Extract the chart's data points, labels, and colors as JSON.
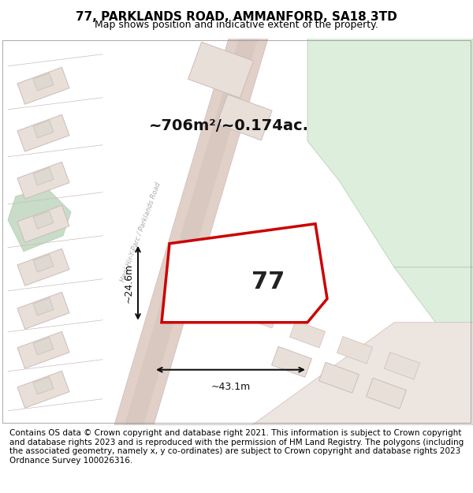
{
  "title": "77, PARKLANDS ROAD, AMMANFORD, SA18 3TD",
  "subtitle": "Map shows position and indicative extent of the property.",
  "footer": "Contains OS data © Crown copyright and database right 2021. This information is subject to Crown copyright and database rights 2023 and is reproduced with the permission of HM Land Registry. The polygons (including the associated geometry, namely x, y co-ordinates) are subject to Crown copyright and database rights 2023 Ordnance Survey 100026316.",
  "area_label": "~706m²/~0.174ac.",
  "number_label": "77",
  "dim_width": "~43.1m",
  "dim_height": "~24.6m",
  "road_label": "Heol Hir-Y-Parc / Parklands Road",
  "bg_color": "#ffffff",
  "map_bg": "#f8f5f2",
  "green_area": "#ddeedd",
  "road_color": "#e8d8d0",
  "road_center_color": "#d4c0b8",
  "building_fill": "#e8e0d8",
  "plot_fill": "#ffffff",
  "plot_stroke": "#cc0000",
  "grid_color": "#ddcccc",
  "title_fontsize": 11,
  "subtitle_fontsize": 9,
  "footer_fontsize": 7.5
}
